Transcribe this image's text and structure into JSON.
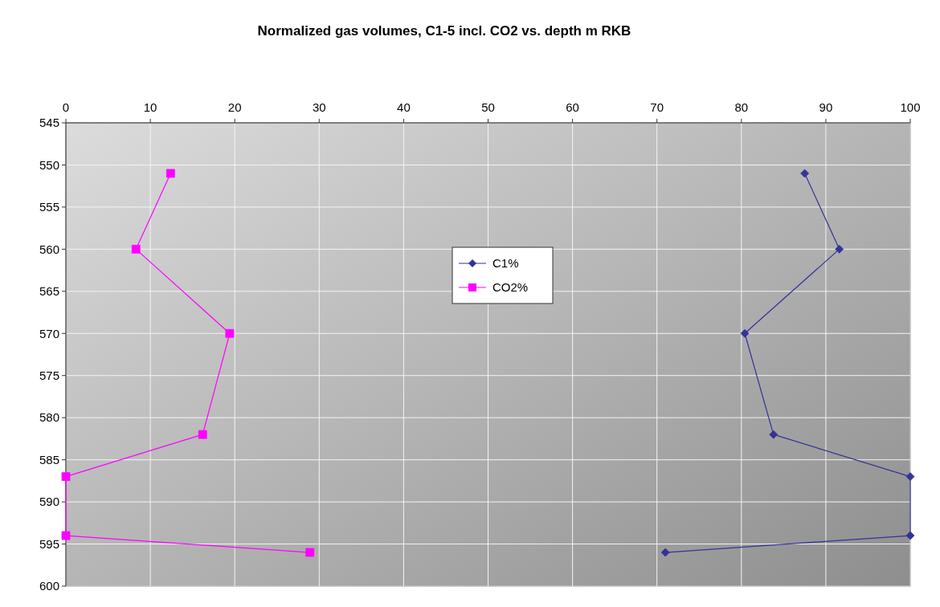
{
  "chart_data": {
    "type": "line",
    "title": "Normalized gas volumes, C1-5 incl. CO2 vs. depth m RKB",
    "xlim": [
      0,
      100
    ],
    "xticks": [
      0,
      10,
      20,
      30,
      40,
      50,
      60,
      70,
      80,
      90,
      100
    ],
    "ylim": [
      600,
      545
    ],
    "yticks": [
      545,
      550,
      555,
      560,
      565,
      570,
      575,
      580,
      585,
      590,
      595,
      600
    ],
    "grid": true,
    "legend": "top",
    "series": [
      {
        "name": "C1%",
        "color": "#333399",
        "marker": "diamond",
        "x": [
          87.5,
          91.6,
          80.4,
          83.8,
          100,
          100,
          71.0
        ],
        "values": [
          551,
          560,
          570,
          582,
          587,
          594,
          596
        ]
      },
      {
        "name": "CO2%",
        "color": "#ff00ff",
        "marker": "square",
        "x": [
          12.4,
          8.3,
          19.4,
          16.2,
          0,
          0,
          28.9
        ],
        "values": [
          551,
          560,
          570,
          582,
          587,
          594,
          596
        ]
      }
    ]
  }
}
